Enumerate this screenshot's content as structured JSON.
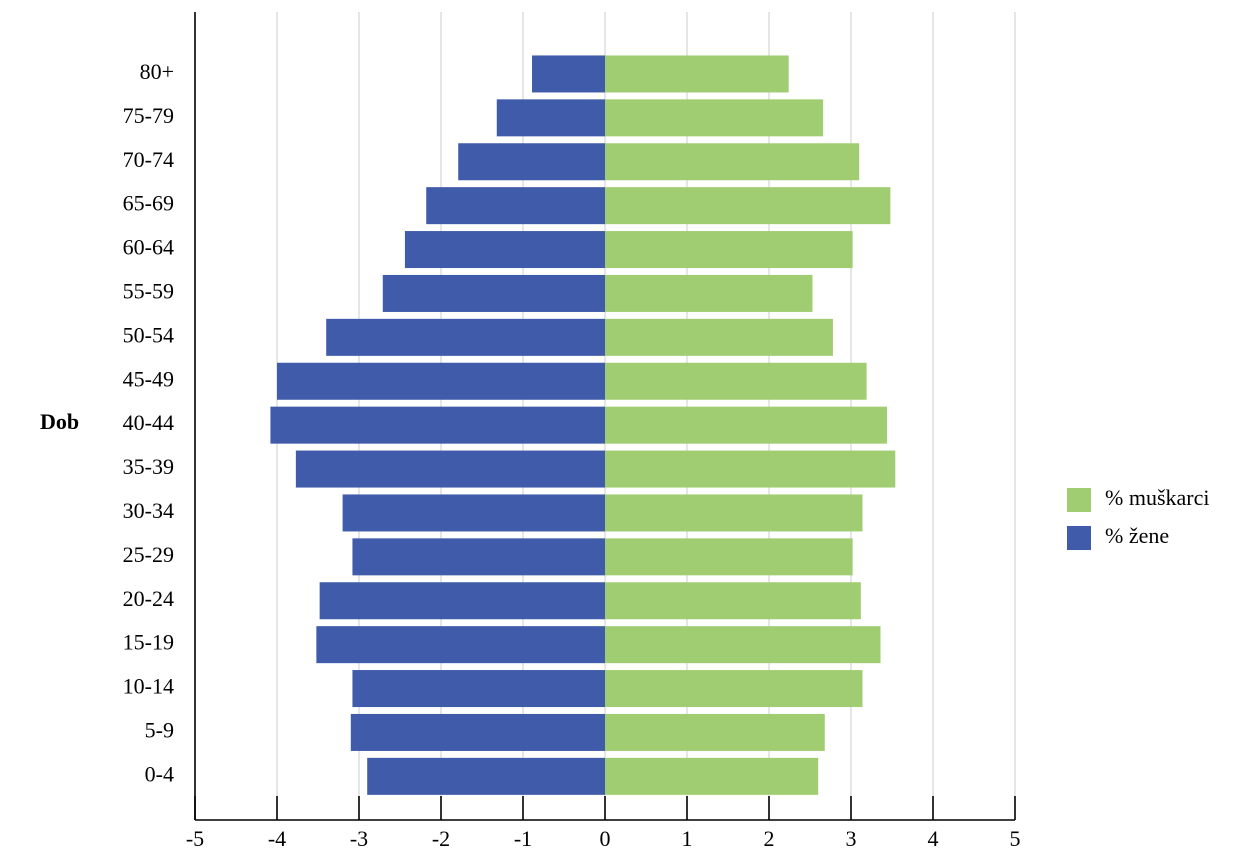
{
  "chart_data": {
    "type": "bar",
    "orientation": "horizontal",
    "title": "",
    "xlabel": "",
    "ylabel": "Dob",
    "xlim": [
      -5,
      5
    ],
    "xticks": [
      -5,
      -4,
      -3,
      -2,
      -1,
      0,
      1,
      2,
      3,
      4,
      5
    ],
    "grid": "vertical",
    "legend_position": "right",
    "categories": [
      "0-4",
      "5-9",
      "10-14",
      "15-19",
      "20-24",
      "25-29",
      "30-34",
      "35-39",
      "40-44",
      "45-49",
      "50-54",
      "55-59",
      "60-64",
      "65-69",
      "70-74",
      "75-79",
      "80+"
    ],
    "series": [
      {
        "name": "% muškarci",
        "color": "#a1cd72",
        "values": [
          2.6,
          2.68,
          3.14,
          3.36,
          3.12,
          3.02,
          3.14,
          3.54,
          3.44,
          3.19,
          2.78,
          2.53,
          3.02,
          3.48,
          3.1,
          2.66,
          2.24
        ]
      },
      {
        "name": "% žene",
        "color": "#3f5ba9",
        "values": [
          -2.9,
          -3.1,
          -3.08,
          -3.52,
          -3.48,
          -3.08,
          -3.2,
          -3.77,
          -4.08,
          -4.0,
          -3.4,
          -2.71,
          -2.44,
          -2.18,
          -1.79,
          -1.32,
          -0.89
        ]
      }
    ]
  }
}
